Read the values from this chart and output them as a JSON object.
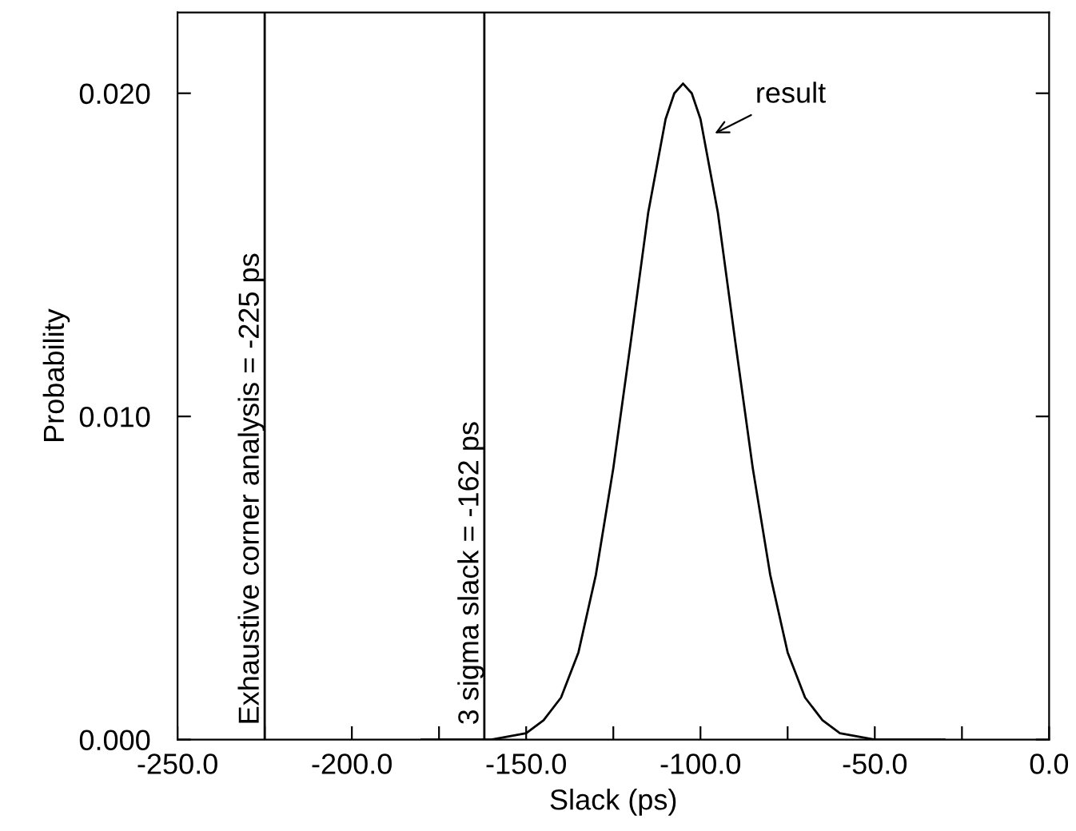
{
  "chart_data": {
    "type": "line",
    "xlabel": "Slack (ps)",
    "ylabel": "Probability",
    "x": [
      -180,
      -175,
      -170,
      -165,
      -160,
      -155,
      -150,
      -145,
      -140,
      -135,
      -130,
      -125,
      -120,
      -115,
      -110,
      -107.5,
      -105,
      -102.5,
      -100,
      -95,
      -90,
      -85,
      -80,
      -75,
      -70,
      -65,
      -60,
      -55,
      -50,
      -45,
      -40,
      -35,
      -30
    ],
    "series": [
      {
        "color": "#000000",
        "values": [
          0.0,
          0.0,
          0.0,
          0.0,
          0.0,
          0.0001,
          0.0002,
          0.0006,
          0.0013,
          0.0027,
          0.0051,
          0.0084,
          0.0123,
          0.0163,
          0.0192,
          0.02,
          0.0203,
          0.02,
          0.0192,
          0.0163,
          0.0123,
          0.0084,
          0.0051,
          0.0027,
          0.0013,
          0.0006,
          0.0002,
          0.0001,
          0.0,
          0.0,
          0.0,
          0.0,
          0.0
        ]
      }
    ],
    "xlim": [
      -250,
      0
    ],
    "xticks": [
      {
        "value": -250,
        "label": "-250.0"
      },
      {
        "value": -225,
        "label": null
      },
      {
        "value": -200,
        "label": "-200.0"
      },
      {
        "value": -175,
        "label": null
      },
      {
        "value": -150,
        "label": "-150.0"
      },
      {
        "value": -125,
        "label": null
      },
      {
        "value": -100,
        "label": "-100.0"
      },
      {
        "value": -75,
        "label": null
      },
      {
        "value": -50,
        "label": "-50.0"
      },
      {
        "value": -25,
        "label": null
      },
      {
        "value": 0,
        "label": "0.0"
      }
    ],
    "ylim": [
      0,
      0.0225
    ],
    "yticks": [
      {
        "value": 0,
        "label": "0.000"
      },
      {
        "value": 0.01,
        "label": "0.010"
      },
      {
        "value": 0.02,
        "label": "0.020"
      }
    ],
    "ref_lines": [
      {
        "axis": "x",
        "value": -225,
        "label": "Exhaustive corner analysis = -225 ps",
        "color": "#000000"
      },
      {
        "axis": "x",
        "value": -162,
        "label": "3 sigma slack = -162 ps",
        "color": "#000000"
      }
    ],
    "annotations": [
      {
        "text": "result",
        "x": -97,
        "y": 0.0187
      }
    ],
    "grid": false,
    "legend": false,
    "marker": "none",
    "line_style": "solid"
  }
}
